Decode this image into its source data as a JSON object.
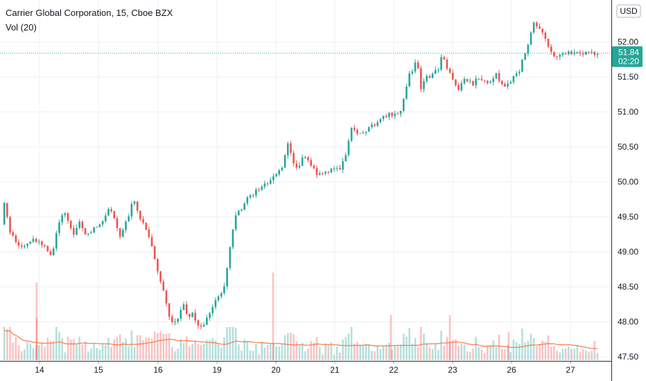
{
  "chart_data": {
    "type": "candlestick",
    "title": "Carrier Global Corporation, 15, Cboe BZX",
    "indicator": "Vol (20)",
    "currency": "USD",
    "ylim": [
      47.44,
      52.6
    ],
    "y_ticks": [
      "52.00",
      "51.50",
      "51.00",
      "50.50",
      "50.00",
      "49.50",
      "49.00",
      "48.50",
      "48.00",
      "47.50"
    ],
    "x_tick_labels": [
      "14",
      "15",
      "16",
      "19",
      "20",
      "21",
      "22",
      "23",
      "26",
      "27"
    ],
    "last_price": "51.84",
    "countdown": "02:20",
    "colors": {
      "up": "#26a69a",
      "down": "#ef5350",
      "ma": "#f57c45",
      "last": "#26a69a"
    },
    "path_points": [
      [
        "14",
        49.28
      ],
      [
        "14",
        49.45
      ],
      [
        "14",
        49.18
      ],
      [
        "14",
        49.7
      ],
      [
        "14",
        49.3
      ],
      [
        "14",
        49.15
      ],
      [
        "14",
        49.05
      ],
      [
        "14",
        49.1
      ],
      [
        "14",
        49.2
      ],
      [
        "15",
        49.05
      ],
      [
        "15",
        48.92
      ],
      [
        "15",
        49.35
      ],
      [
        "15",
        49.6
      ],
      [
        "15",
        49.4
      ],
      [
        "15",
        49.25
      ],
      [
        "15",
        49.45
      ],
      [
        "15",
        49.2
      ],
      [
        "15",
        49.3
      ],
      [
        "16",
        49.5
      ],
      [
        "16",
        49.65
      ],
      [
        "16",
        49.45
      ],
      [
        "16",
        49.2
      ],
      [
        "16",
        49.35
      ],
      [
        "16",
        49.5
      ],
      [
        "16",
        49.78
      ],
      [
        "16",
        49.55
      ],
      [
        "16",
        49.45
      ],
      [
        "16",
        49.3
      ],
      [
        "16",
        49.08
      ],
      [
        "19",
        48.38
      ],
      [
        "19",
        48.1
      ],
      [
        "19",
        47.95
      ],
      [
        "19",
        48.05
      ],
      [
        "19",
        48.3
      ],
      [
        "19",
        48.05
      ],
      [
        "19",
        48.15
      ],
      [
        "19",
        47.95
      ],
      [
        "19",
        47.9
      ],
      [
        "19",
        48.0
      ],
      [
        "19",
        48.15
      ],
      [
        "20",
        48.5
      ],
      [
        "20",
        49.0
      ],
      [
        "20",
        49.5
      ],
      [
        "20",
        49.6
      ],
      [
        "20",
        49.75
      ],
      [
        "20",
        49.82
      ],
      [
        "20",
        49.9
      ],
      [
        "20",
        49.95
      ],
      [
        "20",
        50.0
      ],
      [
        "21",
        50.2
      ],
      [
        "21",
        50.55
      ],
      [
        "21",
        50.3
      ],
      [
        "21",
        50.2
      ],
      [
        "21",
        50.38
      ],
      [
        "21",
        50.3
      ],
      [
        "21",
        50.2
      ],
      [
        "21",
        50.1
      ],
      [
        "21",
        50.12
      ],
      [
        "21",
        50.15
      ],
      [
        "22",
        50.2
      ],
      [
        "22",
        50.45
      ],
      [
        "22",
        50.75
      ],
      [
        "22",
        50.72
      ],
      [
        "22",
        50.7
      ],
      [
        "22",
        50.75
      ],
      [
        "22",
        50.8
      ],
      [
        "22",
        50.85
      ],
      [
        "22",
        50.9
      ],
      [
        "22",
        50.95
      ],
      [
        "23",
        51.0
      ],
      [
        "23",
        51.2
      ],
      [
        "23",
        51.5
      ],
      [
        "23",
        51.6
      ],
      [
        "23",
        51.75
      ],
      [
        "23",
        51.3
      ],
      [
        "23",
        51.55
      ],
      [
        "23",
        51.5
      ],
      [
        "23",
        51.6
      ],
      [
        "23",
        51.55
      ],
      [
        "23",
        51.85
      ],
      [
        "23",
        51.65
      ],
      [
        "26",
        51.3
      ],
      [
        "26",
        51.5
      ],
      [
        "26",
        51.45
      ],
      [
        "26",
        51.4
      ],
      [
        "26",
        51.5
      ],
      [
        "26",
        51.45
      ],
      [
        "26",
        51.4
      ],
      [
        "26",
        51.45
      ],
      [
        "26",
        51.55
      ],
      [
        "26",
        51.38
      ],
      [
        "26",
        51.35
      ],
      [
        "27",
        51.6
      ],
      [
        "27",
        51.9
      ],
      [
        "27",
        52.25
      ],
      [
        "27",
        52.15
      ],
      [
        "27",
        51.95
      ],
      [
        "27",
        51.75
      ],
      [
        "27",
        51.84
      ]
    ],
    "volume_spikes": [
      [
        "14",
        0.55
      ],
      [
        "14",
        0.3
      ],
      [
        "20",
        0.62
      ],
      [
        "22",
        0.32
      ],
      [
        "23",
        0.32
      ],
      [
        "26",
        0.2
      ]
    ]
  }
}
